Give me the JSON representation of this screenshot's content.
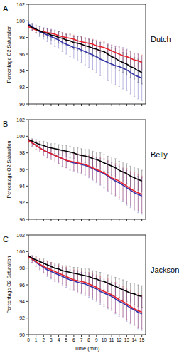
{
  "chart_data": [
    {
      "type": "line",
      "panel_label": "A",
      "title": "Dutch",
      "y_label": "Percentage O2 Saturation",
      "x": [
        0,
        0.5,
        1,
        1.5,
        2,
        2.5,
        3,
        3.5,
        4,
        4.5,
        5,
        5.5,
        6,
        6.5,
        7,
        7.5,
        8,
        8.5,
        9,
        9.5,
        10,
        10.5,
        11,
        11.5,
        12,
        12.5,
        13,
        13.5,
        14,
        14.5,
        15
      ],
      "xlim": [
        0,
        15.5
      ],
      "xticks": [
        0,
        1,
        2,
        3,
        4,
        5,
        6,
        7,
        8,
        9,
        10,
        11,
        12,
        13,
        14,
        15
      ],
      "tick_labels": "y",
      "ylim": [
        90,
        102
      ],
      "yticks": [
        90,
        92,
        94,
        96,
        98,
        100,
        102
      ],
      "series": [
        {
          "color": "#000000",
          "values": [
            99.5,
            99.2,
            99.0,
            98.8,
            98.6,
            98.5,
            98.3,
            98.2,
            98.0,
            97.9,
            97.7,
            97.6,
            97.4,
            97.3,
            97.2,
            97.0,
            96.9,
            96.7,
            96.6,
            96.4,
            96.3,
            96.0,
            95.7,
            95.5,
            95.2,
            95.0,
            94.8,
            94.5,
            94.3,
            94.0,
            93.8
          ],
          "errors": [
            0.3,
            0.4,
            0.4,
            0.5,
            0.5,
            0.6,
            0.6,
            0.6,
            0.7,
            0.7,
            0.7,
            0.8,
            0.8,
            0.8,
            0.9,
            0.9,
            0.9,
            1.0,
            1.0,
            1.0,
            1.1,
            1.1,
            1.1,
            1.2,
            1.2,
            1.2,
            1.3,
            1.3,
            1.3,
            1.4,
            1.4
          ]
        },
        {
          "color": "#e8202a",
          "values": [
            99.3,
            99.1,
            98.9,
            98.8,
            98.7,
            98.6,
            98.5,
            98.4,
            98.2,
            98.1,
            98.0,
            97.9,
            97.8,
            97.6,
            97.5,
            97.4,
            97.3,
            97.2,
            97.0,
            96.9,
            96.8,
            96.6,
            96.4,
            96.2,
            96.0,
            95.8,
            95.7,
            95.5,
            95.3,
            95.2,
            95.0
          ],
          "errors": [
            0.2,
            0.3,
            0.3,
            0.3,
            0.4,
            0.4,
            0.4,
            0.4,
            0.5,
            0.5,
            0.5,
            0.5,
            0.5,
            0.6,
            0.6,
            0.6,
            0.6,
            0.6,
            0.7,
            0.7,
            0.7,
            0.7,
            0.7,
            0.8,
            0.8,
            0.8,
            0.8,
            0.8,
            0.8,
            0.9,
            0.9
          ]
        },
        {
          "color": "#3434a8",
          "values": [
            99.6,
            99.3,
            99.0,
            98.7,
            98.5,
            98.3,
            98.1,
            97.9,
            97.7,
            97.4,
            97.2,
            97.0,
            96.8,
            96.7,
            96.5,
            96.3,
            96.1,
            95.9,
            95.7,
            95.4,
            95.2,
            95.0,
            94.8,
            94.6,
            94.5,
            94.3,
            94.1,
            93.8,
            93.5,
            93.3,
            93.1
          ],
          "errors": [
            0.3,
            0.4,
            0.5,
            0.6,
            0.7,
            0.8,
            0.9,
            1.0,
            1.0,
            1.1,
            1.2,
            1.3,
            1.3,
            1.4,
            1.5,
            1.6,
            1.7,
            1.8,
            1.9,
            2.0,
            2.1,
            2.2,
            2.3,
            2.3,
            2.4,
            2.5,
            2.5,
            2.6,
            2.6,
            2.7,
            2.7
          ]
        }
      ]
    },
    {
      "type": "line",
      "panel_label": "B",
      "title": "Belly",
      "y_label": "Percentage O2 Saturation",
      "x": [
        0,
        0.5,
        1,
        1.5,
        2,
        2.5,
        3,
        3.5,
        4,
        4.5,
        5,
        5.5,
        6,
        6.5,
        7,
        7.5,
        8,
        8.5,
        9,
        9.5,
        10,
        10.5,
        11,
        11.5,
        12,
        12.5,
        13,
        13.5,
        14,
        14.5,
        15
      ],
      "xlim": [
        0,
        15.5
      ],
      "xticks": [
        0,
        1,
        2,
        3,
        4,
        5,
        6,
        7,
        8,
        9,
        10,
        11,
        12,
        13,
        14,
        15
      ],
      "tick_labels": "y",
      "ylim": [
        90,
        102
      ],
      "yticks": [
        90,
        92,
        94,
        96,
        98,
        100,
        102
      ],
      "series": [
        {
          "color": "#000000",
          "values": [
            99.6,
            99.4,
            99.2,
            99.0,
            98.9,
            98.7,
            98.6,
            98.5,
            98.4,
            98.3,
            98.2,
            98.1,
            98.0,
            97.8,
            97.7,
            97.6,
            97.5,
            97.3,
            97.2,
            97.0,
            96.8,
            96.6,
            96.4,
            96.2,
            95.9,
            95.7,
            95.5,
            95.2,
            95.0,
            94.8,
            94.6
          ],
          "errors": [
            0.3,
            0.3,
            0.4,
            0.4,
            0.5,
            0.5,
            0.5,
            0.6,
            0.6,
            0.6,
            0.7,
            0.7,
            0.7,
            0.8,
            0.8,
            0.8,
            0.9,
            0.9,
            0.9,
            1.0,
            1.0,
            1.0,
            1.1,
            1.1,
            1.1,
            1.2,
            1.2,
            1.2,
            1.3,
            1.3,
            1.3
          ]
        },
        {
          "color": "#e8202a",
          "values": [
            99.5,
            99.2,
            98.9,
            98.6,
            98.3,
            98.1,
            97.9,
            97.7,
            97.5,
            97.3,
            97.1,
            97.0,
            96.9,
            96.8,
            96.7,
            96.6,
            96.4,
            96.2,
            96.0,
            95.8,
            95.6,
            95.3,
            95.0,
            94.8,
            94.6,
            94.3,
            94.0,
            93.7,
            93.4,
            93.2,
            93.0
          ],
          "errors": [
            0.3,
            0.4,
            0.5,
            0.5,
            0.6,
            0.7,
            0.7,
            0.8,
            0.8,
            0.9,
            0.9,
            1.0,
            1.0,
            1.1,
            1.1,
            1.2,
            1.3,
            1.4,
            1.5,
            1.6,
            1.7,
            1.8,
            1.9,
            1.9,
            2.0,
            2.0,
            2.1,
            2.1,
            2.2,
            2.2,
            2.2
          ]
        },
        {
          "color": "#3434a8",
          "values": [
            99.6,
            99.2,
            98.9,
            98.6,
            98.3,
            98.1,
            97.9,
            97.7,
            97.5,
            97.3,
            97.1,
            96.9,
            96.8,
            96.7,
            96.6,
            96.5,
            96.3,
            96.1,
            95.9,
            95.7,
            95.5,
            95.2,
            94.9,
            94.6,
            94.4,
            94.1,
            93.8,
            93.5,
            93.2,
            93.0,
            92.8
          ],
          "errors": [
            0.3,
            0.4,
            0.5,
            0.5,
            0.6,
            0.7,
            0.7,
            0.8,
            0.8,
            0.9,
            0.9,
            1.0,
            1.0,
            1.1,
            1.1,
            1.2,
            1.3,
            1.4,
            1.5,
            1.6,
            1.7,
            1.8,
            1.9,
            1.9,
            2.0,
            2.0,
            2.1,
            2.1,
            2.2,
            2.2,
            2.2
          ]
        }
      ]
    },
    {
      "type": "line",
      "panel_label": "C",
      "title": "Jackson",
      "y_label": "Percentage O2 Saturation",
      "x_label": "Time (min)",
      "x": [
        0,
        0.5,
        1,
        1.5,
        2,
        2.5,
        3,
        3.5,
        4,
        4.5,
        5,
        5.5,
        6,
        6.5,
        7,
        7.5,
        8,
        8.5,
        9,
        9.5,
        10,
        10.5,
        11,
        11.5,
        12,
        12.5,
        13,
        13.5,
        14,
        14.5,
        15
      ],
      "xlim": [
        0,
        15.5
      ],
      "xticks": [
        0,
        1,
        2,
        3,
        4,
        5,
        6,
        7,
        8,
        9,
        10,
        11,
        12,
        13,
        14,
        15
      ],
      "ylim": [
        90,
        102
      ],
      "yticks": [
        90,
        92,
        94,
        96,
        98,
        100,
        102
      ],
      "series": [
        {
          "color": "#000000",
          "values": [
            99.5,
            99.2,
            99.0,
            98.8,
            98.6,
            98.4,
            98.2,
            98.0,
            97.9,
            97.7,
            97.6,
            97.5,
            97.4,
            97.3,
            97.2,
            97.1,
            97.0,
            96.8,
            96.7,
            96.5,
            96.4,
            96.2,
            96.0,
            95.8,
            95.6,
            95.4,
            95.2,
            95.0,
            94.9,
            94.7,
            94.6
          ],
          "errors": [
            0.3,
            0.3,
            0.4,
            0.4,
            0.5,
            0.5,
            0.5,
            0.6,
            0.6,
            0.6,
            0.7,
            0.7,
            0.7,
            0.8,
            0.8,
            0.8,
            0.9,
            0.9,
            0.9,
            1.0,
            1.0,
            1.0,
            1.1,
            1.1,
            1.1,
            1.2,
            1.2,
            1.2,
            1.3,
            1.3,
            1.3
          ]
        },
        {
          "color": "#e8202a",
          "values": [
            99.4,
            99.1,
            98.8,
            98.5,
            98.2,
            98.0,
            97.8,
            97.6,
            97.4,
            97.2,
            97.0,
            96.8,
            96.6,
            96.5,
            96.4,
            96.3,
            96.1,
            95.9,
            95.7,
            95.4,
            95.2,
            95.0,
            94.8,
            94.5,
            94.2,
            94.0,
            93.7,
            93.4,
            93.1,
            92.9,
            92.7
          ],
          "errors": [
            0.3,
            0.4,
            0.5,
            0.6,
            0.7,
            0.8,
            0.9,
            1.0,
            1.0,
            1.1,
            1.1,
            1.2,
            1.2,
            1.3,
            1.3,
            1.4,
            1.4,
            1.5,
            1.5,
            1.6,
            1.6,
            1.7,
            1.7,
            1.8,
            1.8,
            1.8,
            1.9,
            1.9,
            1.9,
            2.0,
            2.0
          ]
        },
        {
          "color": "#3434a8",
          "values": [
            99.5,
            99.1,
            98.7,
            98.4,
            98.1,
            97.8,
            97.6,
            97.4,
            97.2,
            97.0,
            96.8,
            96.6,
            96.5,
            96.3,
            96.2,
            96.1,
            95.9,
            95.7,
            95.5,
            95.2,
            95.0,
            94.8,
            94.6,
            94.3,
            94.0,
            93.8,
            93.5,
            93.2,
            93.0,
            92.7,
            92.5
          ],
          "errors": [
            0.3,
            0.4,
            0.5,
            0.6,
            0.7,
            0.8,
            0.9,
            1.0,
            1.0,
            1.1,
            1.1,
            1.2,
            1.2,
            1.3,
            1.3,
            1.4,
            1.4,
            1.5,
            1.5,
            1.6,
            1.6,
            1.7,
            1.7,
            1.8,
            1.8,
            1.8,
            1.9,
            1.9,
            1.9,
            2.0,
            2.0
          ]
        }
      ]
    }
  ]
}
